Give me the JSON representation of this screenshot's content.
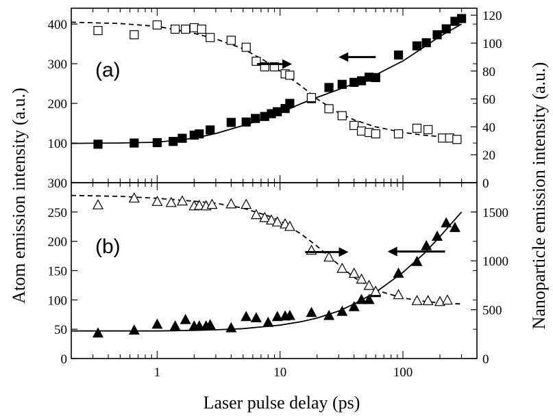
{
  "chart_data": {
    "type": "scatter",
    "xlabel": "Laser pulse delay (ps)",
    "xscale": "log",
    "xlim": [
      0.2,
      400
    ],
    "x_ticks": [
      "1",
      "10",
      "100"
    ],
    "ylabel_left": "Atom emission intensity (a.u.)",
    "ylabel_right": "Nanoparticle emission intensity (a.u.)",
    "panels": [
      {
        "label": "(a)",
        "ylim_left": [
          0,
          440
        ],
        "ylim_right": [
          0,
          125
        ],
        "yticks_left": [
          "100",
          "200",
          "300",
          "400"
        ],
        "yticks_right": [
          "0",
          "20",
          "40",
          "60",
          "80",
          "100",
          "120"
        ],
        "series": [
          {
            "marker": "filled-square",
            "axis": "left",
            "x": [
              0.33,
              0.65,
              1.0,
              1.35,
              1.6,
              2.0,
              2.2,
              2.7,
              4.0,
              5.3,
              6.3,
              7.5,
              8.5,
              9.5,
              11,
              12,
              18,
              25,
              32,
              40,
              46,
              53,
              60,
              92,
              130,
              155,
              190,
              225,
              265,
              300
            ],
            "y": [
              97,
              100,
              101,
              104,
              112,
              120,
              123,
              133,
              152,
              153,
              162,
              167,
              174,
              179,
              187,
              200,
              212,
              240,
              248,
              253,
              257,
              266,
              265,
              322,
              345,
              353,
              373,
              388,
              407,
              414
            ]
          },
          {
            "marker": "open-square",
            "axis": "right",
            "x": [
              0.33,
              0.65,
              1.0,
              1.4,
              1.7,
              2.0,
              2.3,
              2.7,
              4.0,
              5.3,
              6.4,
              7.5,
              9.0,
              11,
              12,
              18,
              25,
              32,
              40,
              46,
              53,
              60,
              92,
              130,
              160,
              210,
              240,
              275
            ],
            "y": [
              109,
              106,
              113,
              110,
              110,
              111,
              110,
              104,
              102,
              97,
              87,
              83,
              83,
              78,
              77,
              61,
              53,
              48,
              41,
              37,
              36,
              35,
              35,
              39,
              38,
              32,
              32,
              31
            ]
          },
          {
            "type": "fit",
            "style": "solid",
            "axis": "left",
            "x": [
              0.2,
              0.5,
              1,
              2,
              3,
              5,
              8,
              10,
              15,
              20,
              30,
              40,
              60,
              100,
              150,
              200,
              300
            ],
            "y": [
              99,
              100,
              102,
              112,
              124,
              144,
              164,
              176,
              200,
              215,
              235,
              250,
              272,
              307,
              343,
              369,
              400
            ]
          },
          {
            "type": "fit",
            "style": "dashed",
            "axis": "right",
            "x": [
              0.2,
              0.5,
              1,
              2,
              3,
              5,
              8,
              10,
              15,
              20,
              30,
              40,
              60,
              100,
              150,
              200,
              300
            ],
            "y": [
              115,
              114,
              112,
              107,
              103,
              96,
              86,
              80,
              69,
              60,
              50,
              45,
              40,
              36,
              34,
              33,
              32
            ]
          }
        ],
        "arrows": [
          {
            "direction": "right",
            "x_from": 6.5,
            "x_to": 12.5,
            "y": 85,
            "axis": "right"
          },
          {
            "direction": "left",
            "x_from": 60,
            "x_to": 30,
            "y": 90,
            "axis": "right"
          }
        ]
      },
      {
        "label": "(b)",
        "ylim_left": [
          0,
          300
        ],
        "ylim_right": [
          0,
          1800
        ],
        "yticks_left": [
          "0",
          "50",
          "100",
          "150",
          "200",
          "250",
          "300"
        ],
        "yticks_right": [
          "0",
          "500",
          "1000",
          "1500"
        ],
        "series": [
          {
            "marker": "filled-triangle",
            "axis": "left",
            "x": [
              0.33,
              0.65,
              1.0,
              1.4,
              1.7,
              2.0,
              2.2,
              2.5,
              2.7,
              4.0,
              5.3,
              6.4,
              8.0,
              9.5,
              11,
              12,
              18,
              25,
              32,
              40,
              46,
              53,
              60,
              92,
              130,
              155,
              190,
              225,
              265
            ],
            "y": [
              43,
              48,
              58,
              55,
              66,
              55,
              55,
              55,
              57,
              52,
              71,
              69,
              61,
              71,
              72,
              73,
              78,
              73,
              80,
              88,
              100,
              100,
              112,
              145,
              165,
              192,
              208,
              231,
              223
            ]
          },
          {
            "marker": "open-triangle",
            "axis": "right",
            "x": [
              0.33,
              0.65,
              1.0,
              1.3,
              1.6,
              2.0,
              2.2,
              2.5,
              2.8,
              4.0,
              5.3,
              6.4,
              7.5,
              8.5,
              9.5,
              11,
              12,
              18,
              25,
              32,
              40,
              46,
              53,
              60,
              92,
              130,
              160,
              200,
              230
            ],
            "y": [
              1570,
              1640,
              1605,
              1595,
              1610,
              1560,
              1565,
              1560,
              1575,
              1580,
              1575,
              1470,
              1440,
              1415,
              1395,
              1375,
              1350,
              1105,
              1035,
              920,
              870,
              810,
              745,
              685,
              650,
              590,
              590,
              580,
              595
            ]
          },
          {
            "type": "fit",
            "style": "solid",
            "axis": "left",
            "x": [
              0.2,
              0.5,
              1,
              2,
              3,
              5,
              8,
              10,
              15,
              20,
              30,
              40,
              60,
              100,
              150,
              200,
              300
            ],
            "y": [
              47,
              47,
              47,
              48,
              49,
              51,
              55,
              57,
              63,
              69,
              81,
              93,
              113,
              147,
              180,
              208,
              250
            ]
          },
          {
            "type": "fit",
            "style": "dashed",
            "axis": "right",
            "x": [
              0.2,
              0.5,
              1,
              2,
              3,
              5,
              8,
              10,
              15,
              20,
              30,
              40,
              60,
              100,
              150,
              200,
              300
            ],
            "y": [
              1670,
              1660,
              1640,
              1610,
              1590,
              1540,
              1460,
              1410,
              1270,
              1150,
              960,
              830,
              700,
              620,
              585,
              570,
              558
            ]
          }
        ],
        "arrows": [
          {
            "direction": "right",
            "x_from": 16,
            "x_to": 36,
            "y": 1090,
            "axis": "right"
          },
          {
            "direction": "left",
            "x_from": 220,
            "x_to": 75,
            "y": 1095,
            "axis": "right"
          }
        ]
      }
    ]
  }
}
